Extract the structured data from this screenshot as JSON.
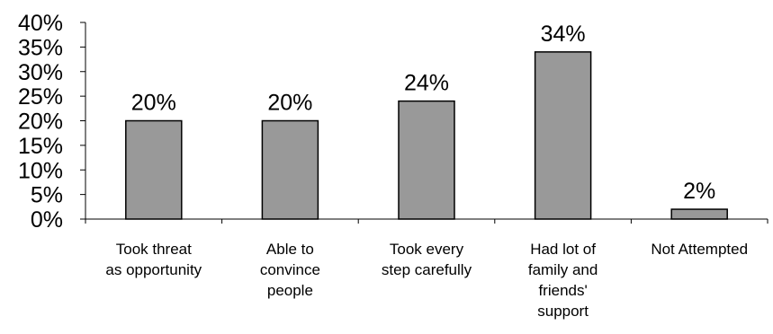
{
  "chart_data": {
    "type": "bar",
    "title": "",
    "xlabel": "",
    "ylabel": "",
    "categories": [
      [
        "Took threat",
        "as opportunity"
      ],
      [
        "Able to",
        "convince",
        "people"
      ],
      [
        "Took every",
        "step carefully"
      ],
      [
        "Had lot of",
        "family and",
        "friends'",
        "support"
      ],
      [
        "Not Attempted"
      ]
    ],
    "values": [
      20,
      20,
      24,
      34,
      2
    ],
    "data_labels": [
      "20%",
      "20%",
      "24%",
      "34%",
      "2%"
    ],
    "ylim": [
      0,
      40
    ],
    "yticks": [
      0,
      5,
      10,
      15,
      20,
      25,
      30,
      35,
      40
    ],
    "ytick_labels": [
      "0%",
      "5%",
      "10%",
      "15%",
      "20%",
      "25%",
      "30%",
      "35%",
      "40%"
    ],
    "grid": false,
    "legend": "none",
    "bar_color": "#999999",
    "bar_edge_color": "#000000"
  }
}
